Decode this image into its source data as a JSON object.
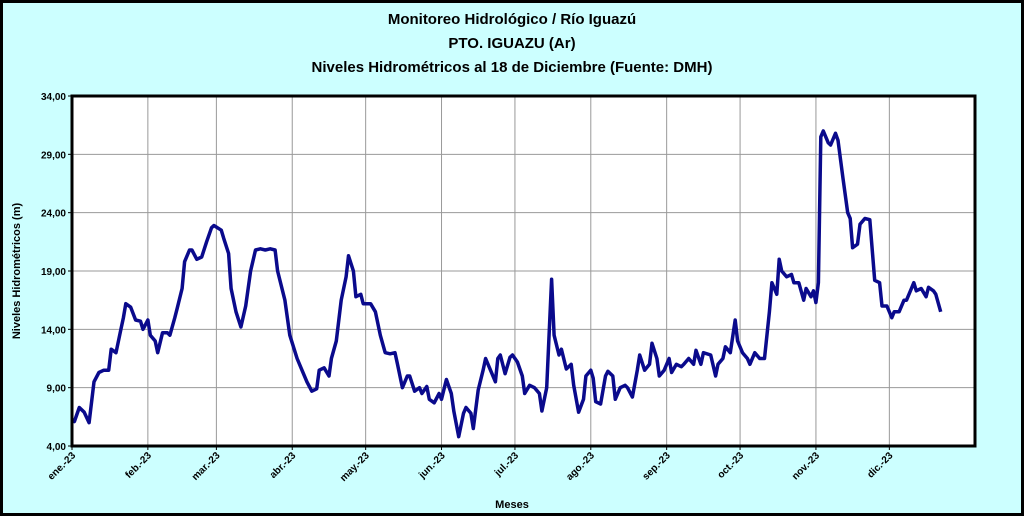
{
  "chart_data": {
    "type": "line",
    "title": "Monitoreo Hidrológico / Río Iguazú",
    "subtitle": "PTO.  IGUAZU (Ar)",
    "subtitle2": "Niveles Hidrométricos  al 18 de Diciembre (Fuente: DMH)",
    "xlabel": "Meses",
    "ylabel": "Niveles Hidrométricos (m)",
    "xlim": [
      0,
      369
    ],
    "ylim": [
      4,
      34
    ],
    "xticks": [
      {
        "value": 0,
        "label": "ene.-23"
      },
      {
        "value": 31,
        "label": "feb.-23"
      },
      {
        "value": 59,
        "label": "mar.-23"
      },
      {
        "value": 90,
        "label": "abr.-23"
      },
      {
        "value": 120,
        "label": "may.-23"
      },
      {
        "value": 151,
        "label": "jun.-23"
      },
      {
        "value": 181,
        "label": "jul.-23"
      },
      {
        "value": 212,
        "label": "ago.-23"
      },
      {
        "value": 243,
        "label": "sep.-23"
      },
      {
        "value": 273,
        "label": "oct.-23"
      },
      {
        "value": 304,
        "label": "nov.-23"
      },
      {
        "value": 334,
        "label": "dic.-23"
      }
    ],
    "yticks": [
      {
        "value": 4,
        "label": "4,00"
      },
      {
        "value": 9,
        "label": "9,00"
      },
      {
        "value": 14,
        "label": "14,00"
      },
      {
        "value": 19,
        "label": "19,00"
      },
      {
        "value": 24,
        "label": "24,00"
      },
      {
        "value": 29,
        "label": "29,00"
      },
      {
        "value": 34,
        "label": "34,00"
      }
    ],
    "grid": true,
    "x": [
      0,
      1,
      3,
      5,
      7,
      9,
      11,
      13,
      15,
      16,
      18,
      20,
      21,
      22,
      24,
      26,
      28,
      29,
      31,
      32,
      34,
      35,
      37,
      39,
      40,
      42,
      43,
      45,
      46,
      48,
      49,
      51,
      53,
      55,
      57,
      58,
      61,
      62,
      64,
      65,
      67,
      69,
      71,
      73,
      75,
      77,
      79,
      81,
      83,
      84,
      87,
      89,
      92,
      94,
      96,
      98,
      100,
      101,
      103,
      105,
      106,
      108,
      110,
      112,
      113,
      115,
      116,
      118,
      119,
      122,
      124,
      126,
      128,
      130,
      132,
      133,
      135,
      137,
      138,
      140,
      142,
      143,
      145,
      146,
      148,
      150,
      151,
      153,
      155,
      156,
      158,
      160,
      161,
      163,
      164,
      166,
      168,
      169,
      171,
      173,
      174,
      175,
      177,
      179,
      180,
      182,
      184,
      185,
      187,
      189,
      191,
      192,
      194,
      196,
      197,
      199,
      200,
      202,
      204,
      205,
      207,
      209,
      210,
      212,
      213,
      214,
      216,
      218,
      219,
      221,
      222,
      224,
      226,
      227,
      229,
      231,
      232,
      234,
      236,
      237,
      239,
      240,
      242,
      244,
      245,
      247,
      249,
      250,
      252,
      254,
      255,
      257,
      258,
      261,
      263,
      264,
      266,
      267,
      269,
      271,
      272,
      274,
      276,
      277,
      279,
      281,
      283,
      285,
      286,
      288,
      289,
      290,
      292,
      294,
      295,
      297,
      299,
      300,
      302,
      303,
      304,
      305,
      306,
      307,
      309,
      310,
      312,
      313,
      315,
      317,
      318,
      319,
      321,
      322,
      324,
      326,
      328,
      330,
      331,
      333,
      335,
      336,
      338,
      340,
      341,
      343,
      344,
      345,
      347,
      349,
      350,
      352,
      353,
      355
    ],
    "series": [
      {
        "name": "Niveles",
        "color": "#0a0a8c",
        "values": [
          6.2,
          6.1,
          7.3,
          6.9,
          6.0,
          9.5,
          10.3,
          10.5,
          10.5,
          12.3,
          12.0,
          14.0,
          15.0,
          16.2,
          15.9,
          14.8,
          14.7,
          14.0,
          14.8,
          13.5,
          13.0,
          12.0,
          13.7,
          13.7,
          13.5,
          15.0,
          15.8,
          17.5,
          19.8,
          20.8,
          20.8,
          20.0,
          20.2,
          21.5,
          22.7,
          22.9,
          22.5,
          21.8,
          20.5,
          17.5,
          15.5,
          14.2,
          16.0,
          19.0,
          20.8,
          20.9,
          20.8,
          20.9,
          20.8,
          19.0,
          16.5,
          13.5,
          11.5,
          10.5,
          9.5,
          8.7,
          8.9,
          10.5,
          10.7,
          10.0,
          11.5,
          13.0,
          16.5,
          18.5,
          20.3,
          19.0,
          16.8,
          17.0,
          16.2,
          16.2,
          15.5,
          13.5,
          12.0,
          11.9,
          12.0,
          11.0,
          9.0,
          10.0,
          10.0,
          8.7,
          9.0,
          8.5,
          9.1,
          8.0,
          7.7,
          8.5,
          8.0,
          9.7,
          8.5,
          7.0,
          4.8,
          6.8,
          7.3,
          6.8,
          5.5,
          8.8,
          10.5,
          11.5,
          10.5,
          9.5,
          11.5,
          11.8,
          10.2,
          11.6,
          11.8,
          11.2,
          10.0,
          8.5,
          9.2,
          9.0,
          8.5,
          7.0,
          9.0,
          18.3,
          13.5,
          11.8,
          12.3,
          10.6,
          11.0,
          9.2,
          6.9,
          8.0,
          10.0,
          10.5,
          9.8,
          7.8,
          7.6,
          10.0,
          10.4,
          10.0,
          8.0,
          9.0,
          9.2,
          9.0,
          8.2,
          10.5,
          11.8,
          10.5,
          11.0,
          12.8,
          11.5,
          10.0,
          10.5,
          11.5,
          10.3,
          11.0,
          10.8,
          11.0,
          11.5,
          11.0,
          12.2,
          11.0,
          12.0,
          11.8,
          10.0,
          11.0,
          11.5,
          12.5,
          12.0,
          14.8,
          13.0,
          12.0,
          11.5,
          11.0,
          12.0,
          11.5,
          11.5,
          15.5,
          18.0,
          17.0,
          20.0,
          19.0,
          18.5,
          18.7,
          18.0,
          18.0,
          16.5,
          17.5,
          16.8,
          17.3,
          16.3,
          18.0,
          30.5,
          31.0,
          30.0,
          29.8,
          30.8,
          30.2,
          27.0,
          24.0,
          23.5,
          21.0,
          21.3,
          23.0,
          23.5,
          23.4,
          18.2,
          18.0,
          16.0,
          16.0,
          15.0,
          15.5,
          15.5,
          16.5,
          16.5,
          17.5,
          18.0,
          17.3,
          17.5,
          16.8,
          17.6,
          17.3,
          17.0,
          15.5
        ]
      }
    ]
  }
}
